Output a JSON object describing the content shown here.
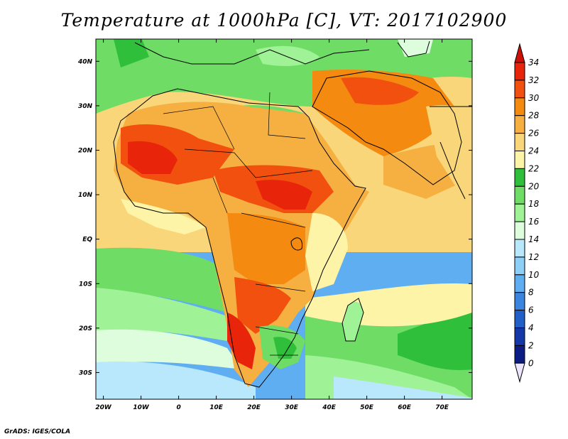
{
  "title": "Temperature at 1000hPa [C], VT: 2017102900",
  "credit": "GrADS: IGES/COLA",
  "map": {
    "lat_labels": [
      "40N",
      "30N",
      "20N",
      "10N",
      "EQ",
      "10S",
      "20S",
      "30S"
    ],
    "lon_labels": [
      "20W",
      "10W",
      "0",
      "10E",
      "20E",
      "30E",
      "40E",
      "50E",
      "60E",
      "70E"
    ],
    "lat_values": [
      40,
      30,
      20,
      10,
      0,
      -10,
      -20,
      -30
    ],
    "lon_values": [
      -20,
      -10,
      0,
      10,
      20,
      30,
      40,
      50,
      60,
      70
    ],
    "lon_range": [
      -22,
      78
    ],
    "lat_range": [
      -36,
      45
    ]
  },
  "colorbar": {
    "labels": [
      "34",
      "32",
      "30",
      "28",
      "26",
      "24",
      "22",
      "20",
      "18",
      "16",
      "14",
      "12",
      "10",
      "8",
      "6",
      "4",
      "2",
      "0"
    ],
    "colors": [
      "#e8250b",
      "#f2500e",
      "#f58a10",
      "#f6b042",
      "#fad67a",
      "#fdf4a8",
      "#2fbf3b",
      "#6edc65",
      "#9ff295",
      "#ddfddd",
      "#b9e7fb",
      "#8ecff8",
      "#5faef2",
      "#3b84e0",
      "#2060c8",
      "#1537a8",
      "#0b1c85",
      "#ece6fc"
    ]
  }
}
